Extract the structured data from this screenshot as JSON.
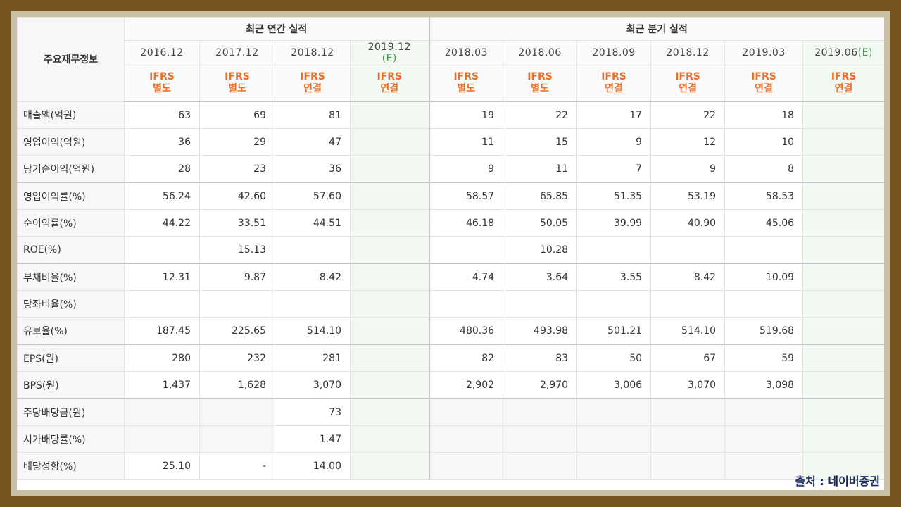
{
  "source": "출처 : 네이버증권",
  "header": {
    "corner": "주요재무정보",
    "annual_title": "최근 연간 실적",
    "quarter_title": "최근 분기 실적",
    "periods": [
      {
        "label": "2016.12",
        "est": ""
      },
      {
        "label": "2017.12",
        "est": ""
      },
      {
        "label": "2018.12",
        "est": ""
      },
      {
        "label": "2019.12",
        "est": "(E)"
      },
      {
        "label": "2018.03",
        "est": ""
      },
      {
        "label": "2018.06",
        "est": ""
      },
      {
        "label": "2018.09",
        "est": ""
      },
      {
        "label": "2018.12",
        "est": ""
      },
      {
        "label": "2019.03",
        "est": ""
      },
      {
        "label": "2019.06",
        "est": "(E)"
      }
    ],
    "ifrs": [
      {
        "a": "IFRS",
        "b": "별도"
      },
      {
        "a": "IFRS",
        "b": "별도"
      },
      {
        "a": "IFRS",
        "b": "연결"
      },
      {
        "a": "IFRS",
        "b": "연결"
      },
      {
        "a": "IFRS",
        "b": "별도"
      },
      {
        "a": "IFRS",
        "b": "별도"
      },
      {
        "a": "IFRS",
        "b": "연결"
      },
      {
        "a": "IFRS",
        "b": "연결"
      },
      {
        "a": "IFRS",
        "b": "연결"
      },
      {
        "a": "IFRS",
        "b": "연결"
      }
    ]
  },
  "rows": [
    {
      "label": "매출액(억원)",
      "values": [
        "63",
        "69",
        "81",
        "",
        "19",
        "22",
        "17",
        "22",
        "18",
        ""
      ]
    },
    {
      "label": "영업이익(억원)",
      "values": [
        "36",
        "29",
        "47",
        "",
        "11",
        "15",
        "9",
        "12",
        "10",
        ""
      ]
    },
    {
      "label": "당기순이익(억원)",
      "values": [
        "28",
        "23",
        "36",
        "",
        "9",
        "11",
        "7",
        "9",
        "8",
        ""
      ]
    },
    {
      "label": "영업이익률(%)",
      "values": [
        "56.24",
        "42.60",
        "57.60",
        "",
        "58.57",
        "65.85",
        "51.35",
        "53.19",
        "58.53",
        ""
      ]
    },
    {
      "label": "순이익률(%)",
      "values": [
        "44.22",
        "33.51",
        "44.51",
        "",
        "46.18",
        "50.05",
        "39.99",
        "40.90",
        "45.06",
        ""
      ]
    },
    {
      "label": "ROE(%)",
      "values": [
        "",
        "15.13",
        "",
        "",
        "",
        "10.28",
        "",
        "",
        "",
        ""
      ]
    },
    {
      "label": "부채비율(%)",
      "values": [
        "12.31",
        "9.87",
        "8.42",
        "",
        "4.74",
        "3.64",
        "3.55",
        "8.42",
        "10.09",
        ""
      ]
    },
    {
      "label": "당좌비율(%)",
      "values": [
        "",
        "",
        "",
        "",
        "",
        "",
        "",
        "",
        "",
        ""
      ]
    },
    {
      "label": "유보율(%)",
      "values": [
        "187.45",
        "225.65",
        "514.10",
        "",
        "480.36",
        "493.98",
        "501.21",
        "514.10",
        "519.68",
        ""
      ]
    },
    {
      "label": "EPS(원)",
      "values": [
        "280",
        "232",
        "281",
        "",
        "82",
        "83",
        "50",
        "67",
        "59",
        ""
      ]
    },
    {
      "label": "BPS(원)",
      "values": [
        "1,437",
        "1,628",
        "3,070",
        "",
        "2,902",
        "2,970",
        "3,006",
        "3,070",
        "3,098",
        ""
      ]
    },
    {
      "label": "주당배당금(원)",
      "values": [
        "",
        "",
        "73",
        "",
        "",
        "",
        "",
        "",
        "",
        ""
      ]
    },
    {
      "label": "시가배당률(%)",
      "values": [
        "",
        "",
        "1.47",
        "",
        "",
        "",
        "",
        "",
        "",
        ""
      ]
    },
    {
      "label": "배당성향(%)",
      "values": [
        "25.10",
        "-",
        "14.00",
        "",
        "",
        "",
        "",
        "",
        "",
        ""
      ]
    }
  ]
}
